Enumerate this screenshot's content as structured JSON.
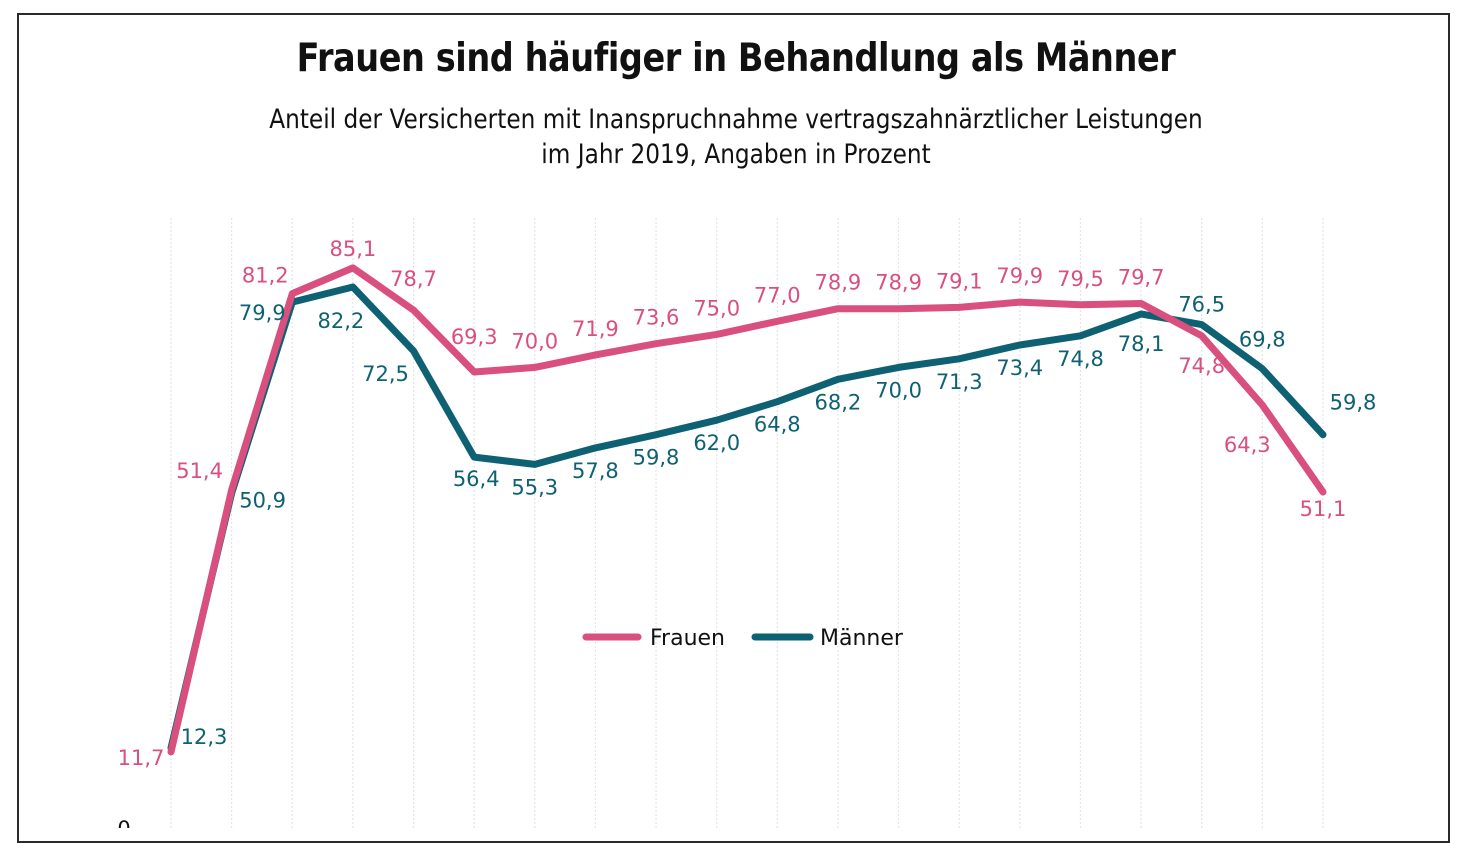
{
  "chart_data": {
    "type": "line",
    "title": "Frauen sind häufiger in Behandlung als Männer",
    "subtitle_line1": "Anteil der Versicherten mit Inanspruchnahme vertragszahnärztlicher Leistungen",
    "subtitle_line2": "im Jahr 2019, Angaben in Prozent",
    "xlabel": "",
    "ylabel": "",
    "ylim": [
      0,
      90
    ],
    "y_tick_labels": [
      "0"
    ],
    "grid": "vertical dotted",
    "legend_position": "center",
    "categories_count": 20,
    "series": [
      {
        "name": "Frauen",
        "color": "#d94f7e",
        "values": [
          11.7,
          51.4,
          81.2,
          85.1,
          78.7,
          69.3,
          70.0,
          71.9,
          73.6,
          75.0,
          77.0,
          78.9,
          78.9,
          79.1,
          79.9,
          79.5,
          79.7,
          74.8,
          64.3,
          51.1
        ],
        "labels": [
          "11,7",
          "51,4",
          "81,2",
          "85,1",
          "78,7",
          "69,3",
          "70,0",
          "71,9",
          "73,6",
          "75,0",
          "77,0",
          "78,9",
          "78,9",
          "79,1",
          "79,9",
          "79,5",
          "79,7",
          "74,8",
          "64,3",
          "51,1"
        ]
      },
      {
        "name": "Männer",
        "color": "#0e6173",
        "values": [
          12.3,
          50.9,
          79.9,
          82.2,
          72.5,
          56.4,
          55.3,
          57.8,
          59.8,
          62.0,
          64.8,
          68.2,
          70.0,
          71.3,
          73.4,
          74.8,
          78.1,
          76.5,
          69.8,
          59.8
        ],
        "labels": [
          "12,3",
          "50,9",
          "79,9",
          "82,2",
          "72,5",
          "56,4",
          "55,3",
          "57,8",
          "59,8",
          "62,0",
          "64,8",
          "68,2",
          "70,0",
          "71,3",
          "73,4",
          "74,8",
          "78,1",
          "76,5",
          "69,8",
          "59,8"
        ]
      }
    ]
  }
}
